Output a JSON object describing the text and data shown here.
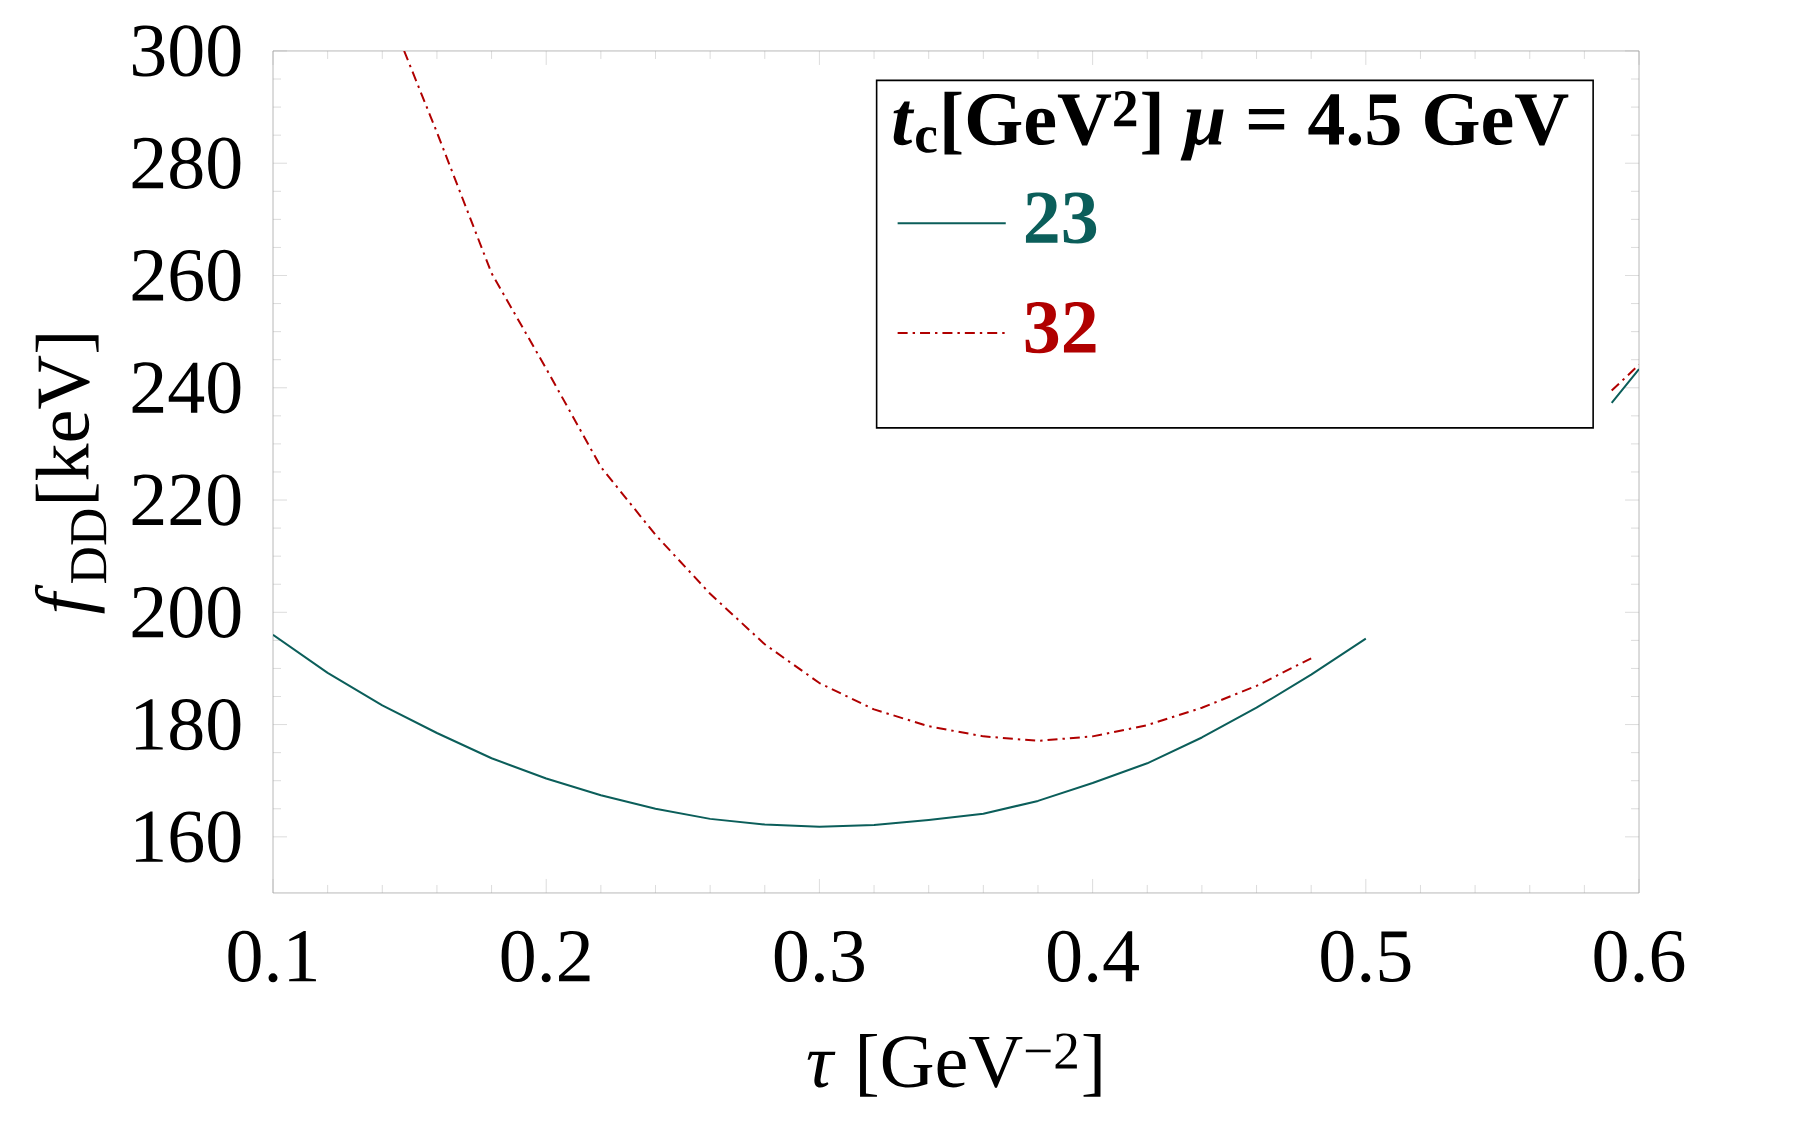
{
  "chart_data": {
    "type": "line",
    "xlabel": "*τ* [GeV$^{−2}$]",
    "ylabel": "*f*$_{DD}$[keV]",
    "legend_title": "*t*$_{c}$[GeV$^{2}$] *μ* = 4.5 GeV",
    "legend": "top right",
    "xlim": [
      0.1,
      0.6
    ],
    "ylim": [
      150,
      300
    ],
    "xticks": [
      0.1,
      0.2,
      0.3,
      0.4,
      0.5,
      0.6
    ],
    "yticks": [
      160,
      180,
      200,
      220,
      240,
      260,
      280,
      300
    ],
    "series": [
      {
        "name": "23",
        "color": "#0b5e5a",
        "line_style": "solid",
        "x": [
          0.1,
          0.12,
          0.14,
          0.16,
          0.18,
          0.2,
          0.22,
          0.24,
          0.26,
          0.28,
          0.3,
          0.32,
          0.34,
          0.36,
          0.38,
          0.4,
          0.42,
          0.44,
          0.46,
          0.48,
          0.5,
          0.52,
          0.54,
          0.56,
          0.59,
          0.6
        ],
        "values": [
          196,
          189.2,
          183.4,
          178.5,
          174,
          170.4,
          167.4,
          165,
          163.2,
          162.2,
          161.8,
          162.1,
          163,
          164.1,
          166.4,
          169.6,
          173.1,
          177.7,
          183,
          188.9,
          195.3,
          null,
          null,
          null,
          237.3,
          243.3
        ]
      },
      {
        "name": "32",
        "color": "#b00000",
        "line_style": "dashdot",
        "x": [
          0.148,
          0.16,
          0.18,
          0.2,
          0.22,
          0.24,
          0.26,
          0.28,
          0.3,
          0.32,
          0.34,
          0.36,
          0.38,
          0.4,
          0.42,
          0.44,
          0.46,
          0.48,
          0.5,
          0.52,
          0.54,
          0.56,
          0.59,
          0.6
        ],
        "values": [
          300,
          285.5,
          260.4,
          243.4,
          225.9,
          213.8,
          203.3,
          194.3,
          187.4,
          182.7,
          179.7,
          177.9,
          177.1,
          177.9,
          179.9,
          183,
          186.9,
          191.8,
          null,
          null,
          null,
          null,
          239.5,
          244.1
        ]
      }
    ]
  }
}
